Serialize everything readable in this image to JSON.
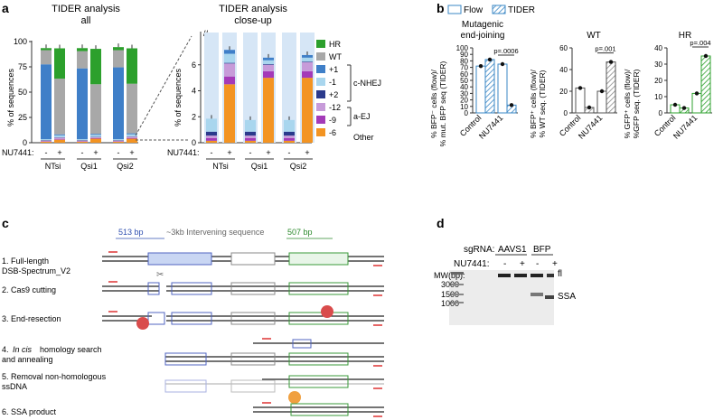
{
  "panels": {
    "a": "a",
    "b": "b",
    "c": "c",
    "d": "d"
  },
  "colors": {
    "hr": "#2ca02c",
    "wt": "#a8a8a8",
    "p1": "#3f7fc8",
    "m1": "#a9d6ee",
    "p2": "#2b3a8c",
    "m12": "#c79bd9",
    "m9": "#a43ab8",
    "m6": "#f39422",
    "flow": "#3a87c5",
    "tider": "#3a87c5",
    "wtflow": "#555555",
    "hrflow": "#2ca02c",
    "cas9": "#d94c4c",
    "cas9b": "#f0a040"
  },
  "panel_a": {
    "left_title_1": "TIDER analysis",
    "left_title_2": "all",
    "right_title_1": "TIDER analysis",
    "right_title_2": "close-up",
    "left_ylabel": "% of sequences",
    "right_ylabel": "% of sequences",
    "left_ticks": [
      "0",
      "25",
      "50",
      "75",
      "100"
    ],
    "right_ticks": [
      "0",
      "2",
      "4",
      "6"
    ],
    "nu_label": "NU7441:",
    "nu_values": [
      "-",
      "+",
      "-",
      "+",
      "-",
      "+"
    ],
    "groups": [
      "NTsi",
      "Qsi1",
      "Qsi2"
    ],
    "legend": [
      "HR",
      "WT",
      "+1",
      "-1",
      "+2",
      "-12",
      "-9",
      "-6"
    ],
    "bracket_cnhej": "c-NHEJ",
    "bracket_aej": "a-EJ",
    "bracket_other": "Other"
  },
  "chart_data": [
    {
      "type": "bar",
      "title": "TIDER analysis all",
      "ylabel": "% of sequences",
      "ylim": [
        0,
        100
      ],
      "categories": [
        "NTsi -",
        "NTsi +",
        "Qsi1 -",
        "Qsi1 +",
        "Qsi2 -",
        "Qsi2 +"
      ],
      "series": [
        {
          "name": "-6",
          "values": [
            1,
            3,
            1,
            4,
            1,
            4
          ]
        },
        {
          "name": "-9",
          "values": [
            0.5,
            0.5,
            0.5,
            0.5,
            0.5,
            0.5
          ]
        },
        {
          "name": "-12",
          "values": [
            0.5,
            1.5,
            0.5,
            1,
            0.5,
            1.5
          ]
        },
        {
          "name": "+2",
          "values": [
            0.5,
            0.3,
            0.5,
            0.3,
            0.5,
            0.3
          ]
        },
        {
          "name": "-1",
          "values": [
            1,
            2,
            1,
            2,
            1,
            2
          ]
        },
        {
          "name": "+1",
          "values": [
            74,
            1,
            70,
            1,
            71,
            1
          ]
        },
        {
          "name": "WT",
          "values": [
            14,
            55,
            17,
            49,
            17,
            49
          ]
        },
        {
          "name": "HR",
          "values": [
            2,
            30,
            3,
            35,
            3,
            35
          ]
        }
      ]
    },
    {
      "type": "bar",
      "title": "TIDER analysis close-up",
      "ylabel": "% of sequences",
      "ylim": [
        0,
        8
      ],
      "categories": [
        "NTsi -",
        "NTsi +",
        "Qsi1 -",
        "Qsi1 +",
        "Qsi2 -",
        "Qsi2 +"
      ],
      "series": [
        {
          "name": "-6",
          "values": [
            0.15,
            4.5,
            0.15,
            5.0,
            0.15,
            5.0
          ]
        },
        {
          "name": "-9",
          "values": [
            0.2,
            0.6,
            0.2,
            0.5,
            0.2,
            0.5
          ]
        },
        {
          "name": "-12",
          "values": [
            0.2,
            1.0,
            0.2,
            0.5,
            0.2,
            0.7
          ]
        },
        {
          "name": "+2",
          "values": [
            0.3,
            0.05,
            0.3,
            0.05,
            0.3,
            0.05
          ]
        },
        {
          "name": "-1",
          "values": [
            1.0,
            0.7,
            0.9,
            0.3,
            0.9,
            0.3
          ]
        },
        {
          "name": "+1",
          "values": [
            0,
            0.3,
            0,
            0.2,
            0,
            0.2
          ]
        }
      ]
    },
    {
      "type": "bar",
      "title": "Mutagenic end-joining",
      "ylabel": "% BFP- cells (flow)/ % mut. BFP seq (TIDER)",
      "ylim": [
        0,
        100
      ],
      "categories": [
        "Control",
        "NU7441"
      ],
      "series": [
        {
          "name": "Flow",
          "values": [
            72,
            75
          ]
        },
        {
          "name": "TIDER",
          "values": [
            82,
            12
          ]
        }
      ],
      "annotations": [
        "p=.0006"
      ]
    },
    {
      "type": "bar",
      "title": "WT",
      "ylabel": "% BFP+ cells (flow)/ % WT seq. (TIDER)",
      "ylim": [
        0,
        60
      ],
      "categories": [
        "Control",
        "NU7441"
      ],
      "series": [
        {
          "name": "Flow",
          "values": [
            23,
            20
          ]
        },
        {
          "name": "TIDER",
          "values": [
            5,
            47
          ]
        }
      ],
      "annotations": [
        "p=.001"
      ]
    },
    {
      "type": "bar",
      "title": "HR",
      "ylabel": "% GFP+ cells (flow)/ %GFP seq. (TIDER)",
      "ylim": [
        0,
        40
      ],
      "categories": [
        "Control",
        "NU7441"
      ],
      "series": [
        {
          "name": "Flow",
          "values": [
            5,
            12
          ]
        },
        {
          "name": "TIDER",
          "values": [
            3,
            35
          ]
        }
      ],
      "annotations": [
        "p=.004"
      ]
    }
  ],
  "panel_b": {
    "legend_flow": "Flow",
    "legend_tider": "TIDER",
    "t1a": "Mutagenic",
    "t1b": "end-joining",
    "t2": "WT",
    "t3": "HR",
    "y1": "% BFP⁻ cells (flow)/",
    "y1b": "% mut. BFP seq (TIDER)",
    "y2": "% BFP⁺ cells (flow)/",
    "y2b": "% WT seq. (TIDER)",
    "y3": "% GFP⁺ cells (flow)/",
    "y3b": "%GFP seq. (TIDER)",
    "x_control": "Control",
    "x_nu": "NU7441",
    "p1": "p=.0006",
    "p2": "p=.001",
    "p3": "p=.004",
    "ticks1": [
      "0",
      "10",
      "20",
      "30",
      "40",
      "50",
      "60",
      "70",
      "80",
      "90",
      "100"
    ],
    "ticks2": [
      "0",
      "20",
      "40",
      "60"
    ],
    "ticks3": [
      "0",
      "10",
      "20",
      "30",
      "40"
    ]
  },
  "panel_c": {
    "bp513": "513 bp",
    "intervening": "~3kb Intervening sequence",
    "bp507": "507 bp",
    "steps": [
      "1. Full-length",
      "DSB-Spectrum_V2",
      "2. Cas9 cutting",
      "3. End-resection",
      "4.",
      "In cis",
      "homology search",
      "and annealing",
      "5. Removal non-homologous",
      "ssDNA",
      "6. SSA product"
    ]
  },
  "panel_d": {
    "sgrna_label": "sgRNA:",
    "sg1": "AAVS1",
    "sg2": "BFP",
    "nu_label": "NU7441:",
    "nu": [
      "-",
      "+",
      "-",
      "+"
    ],
    "mw_label": "MW(bp):",
    "mw": [
      "3000",
      "1500",
      "1000"
    ],
    "fl": "fl",
    "ssa": "SSA"
  }
}
